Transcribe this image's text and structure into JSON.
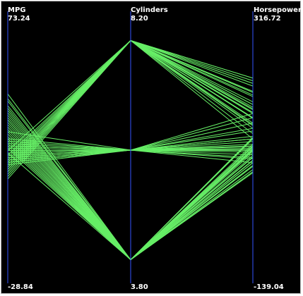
{
  "chart_data": {
    "type": "parallel-coordinates",
    "line_color": "#66ee66",
    "axis_color": "#3355ff",
    "background": "#000000",
    "axes": [
      {
        "name": "MPG",
        "max": 73.24,
        "min": -28.84,
        "max_label": "73.24",
        "min_label": "-28.84"
      },
      {
        "name": "Cylinders",
        "max": 8.2,
        "min": 3.8,
        "max_label": "8.20",
        "min_label": "3.80"
      },
      {
        "name": "Horsepower",
        "max": 316.72,
        "min": -139.04,
        "max_label": "316.72",
        "min_label": "-139.04"
      }
    ],
    "records": [
      [
        18,
        8,
        130
      ],
      [
        15,
        8,
        165
      ],
      [
        18,
        8,
        150
      ],
      [
        16,
        8,
        150
      ],
      [
        17,
        8,
        140
      ],
      [
        15,
        8,
        198
      ],
      [
        14,
        8,
        220
      ],
      [
        14,
        8,
        215
      ],
      [
        14,
        8,
        225
      ],
      [
        15,
        8,
        190
      ],
      [
        15,
        8,
        170
      ],
      [
        14,
        8,
        160
      ],
      [
        15,
        8,
        150
      ],
      [
        14,
        8,
        225
      ],
      [
        13,
        8,
        175
      ],
      [
        12,
        8,
        193
      ],
      [
        13,
        8,
        158
      ],
      [
        11,
        8,
        210
      ],
      [
        16,
        8,
        149
      ],
      [
        19,
        8,
        135
      ],
      [
        17,
        8,
        137
      ],
      [
        16,
        8,
        160
      ],
      [
        12,
        8,
        198
      ],
      [
        13,
        8,
        180
      ],
      [
        10,
        8,
        200
      ],
      [
        20,
        8,
        120
      ],
      [
        22,
        8,
        110
      ],
      [
        14,
        8,
        215
      ],
      [
        16,
        8,
        175
      ],
      [
        13,
        8,
        167
      ],
      [
        24,
        4,
        95
      ],
      [
        27,
        4,
        88
      ],
      [
        26,
        4,
        46
      ],
      [
        25,
        4,
        87
      ],
      [
        24,
        4,
        90
      ],
      [
        26,
        4,
        113
      ],
      [
        31,
        4,
        65
      ],
      [
        35,
        4,
        69
      ],
      [
        28,
        4,
        90
      ],
      [
        32,
        4,
        65
      ],
      [
        30,
        4,
        79
      ],
      [
        29,
        4,
        70
      ],
      [
        36,
        4,
        58
      ],
      [
        38,
        4,
        52
      ],
      [
        44,
        4,
        52
      ],
      [
        41,
        4,
        76
      ],
      [
        34,
        4,
        88
      ],
      [
        33,
        4,
        75
      ],
      [
        27,
        4,
        100
      ],
      [
        23,
        4,
        97
      ],
      [
        39,
        4,
        48
      ],
      [
        37,
        4,
        60
      ],
      [
        43,
        4,
        48
      ],
      [
        46,
        4,
        65
      ],
      [
        29,
        4,
        112
      ],
      [
        25,
        4,
        95
      ],
      [
        21,
        4,
        110
      ],
      [
        32,
        4,
        84
      ],
      [
        40,
        4,
        60
      ],
      [
        35,
        4,
        92
      ],
      [
        18,
        6,
        97
      ],
      [
        21,
        6,
        85
      ],
      [
        20,
        6,
        88
      ],
      [
        19,
        6,
        100
      ],
      [
        23,
        6,
        105
      ],
      [
        22,
        6,
        95
      ],
      [
        17,
        6,
        90
      ],
      [
        24,
        6,
        110
      ],
      [
        25,
        6,
        92
      ],
      [
        26,
        6,
        80
      ],
      [
        19,
        6,
        140
      ],
      [
        21,
        6,
        75
      ],
      [
        18,
        6,
        115
      ],
      [
        20,
        6,
        72
      ],
      [
        16,
        6,
        125
      ],
      [
        22,
        6,
        158
      ],
      [
        27,
        6,
        130
      ],
      [
        24,
        6,
        65
      ],
      [
        17,
        6,
        150
      ],
      [
        30,
        6,
        110
      ]
    ]
  }
}
